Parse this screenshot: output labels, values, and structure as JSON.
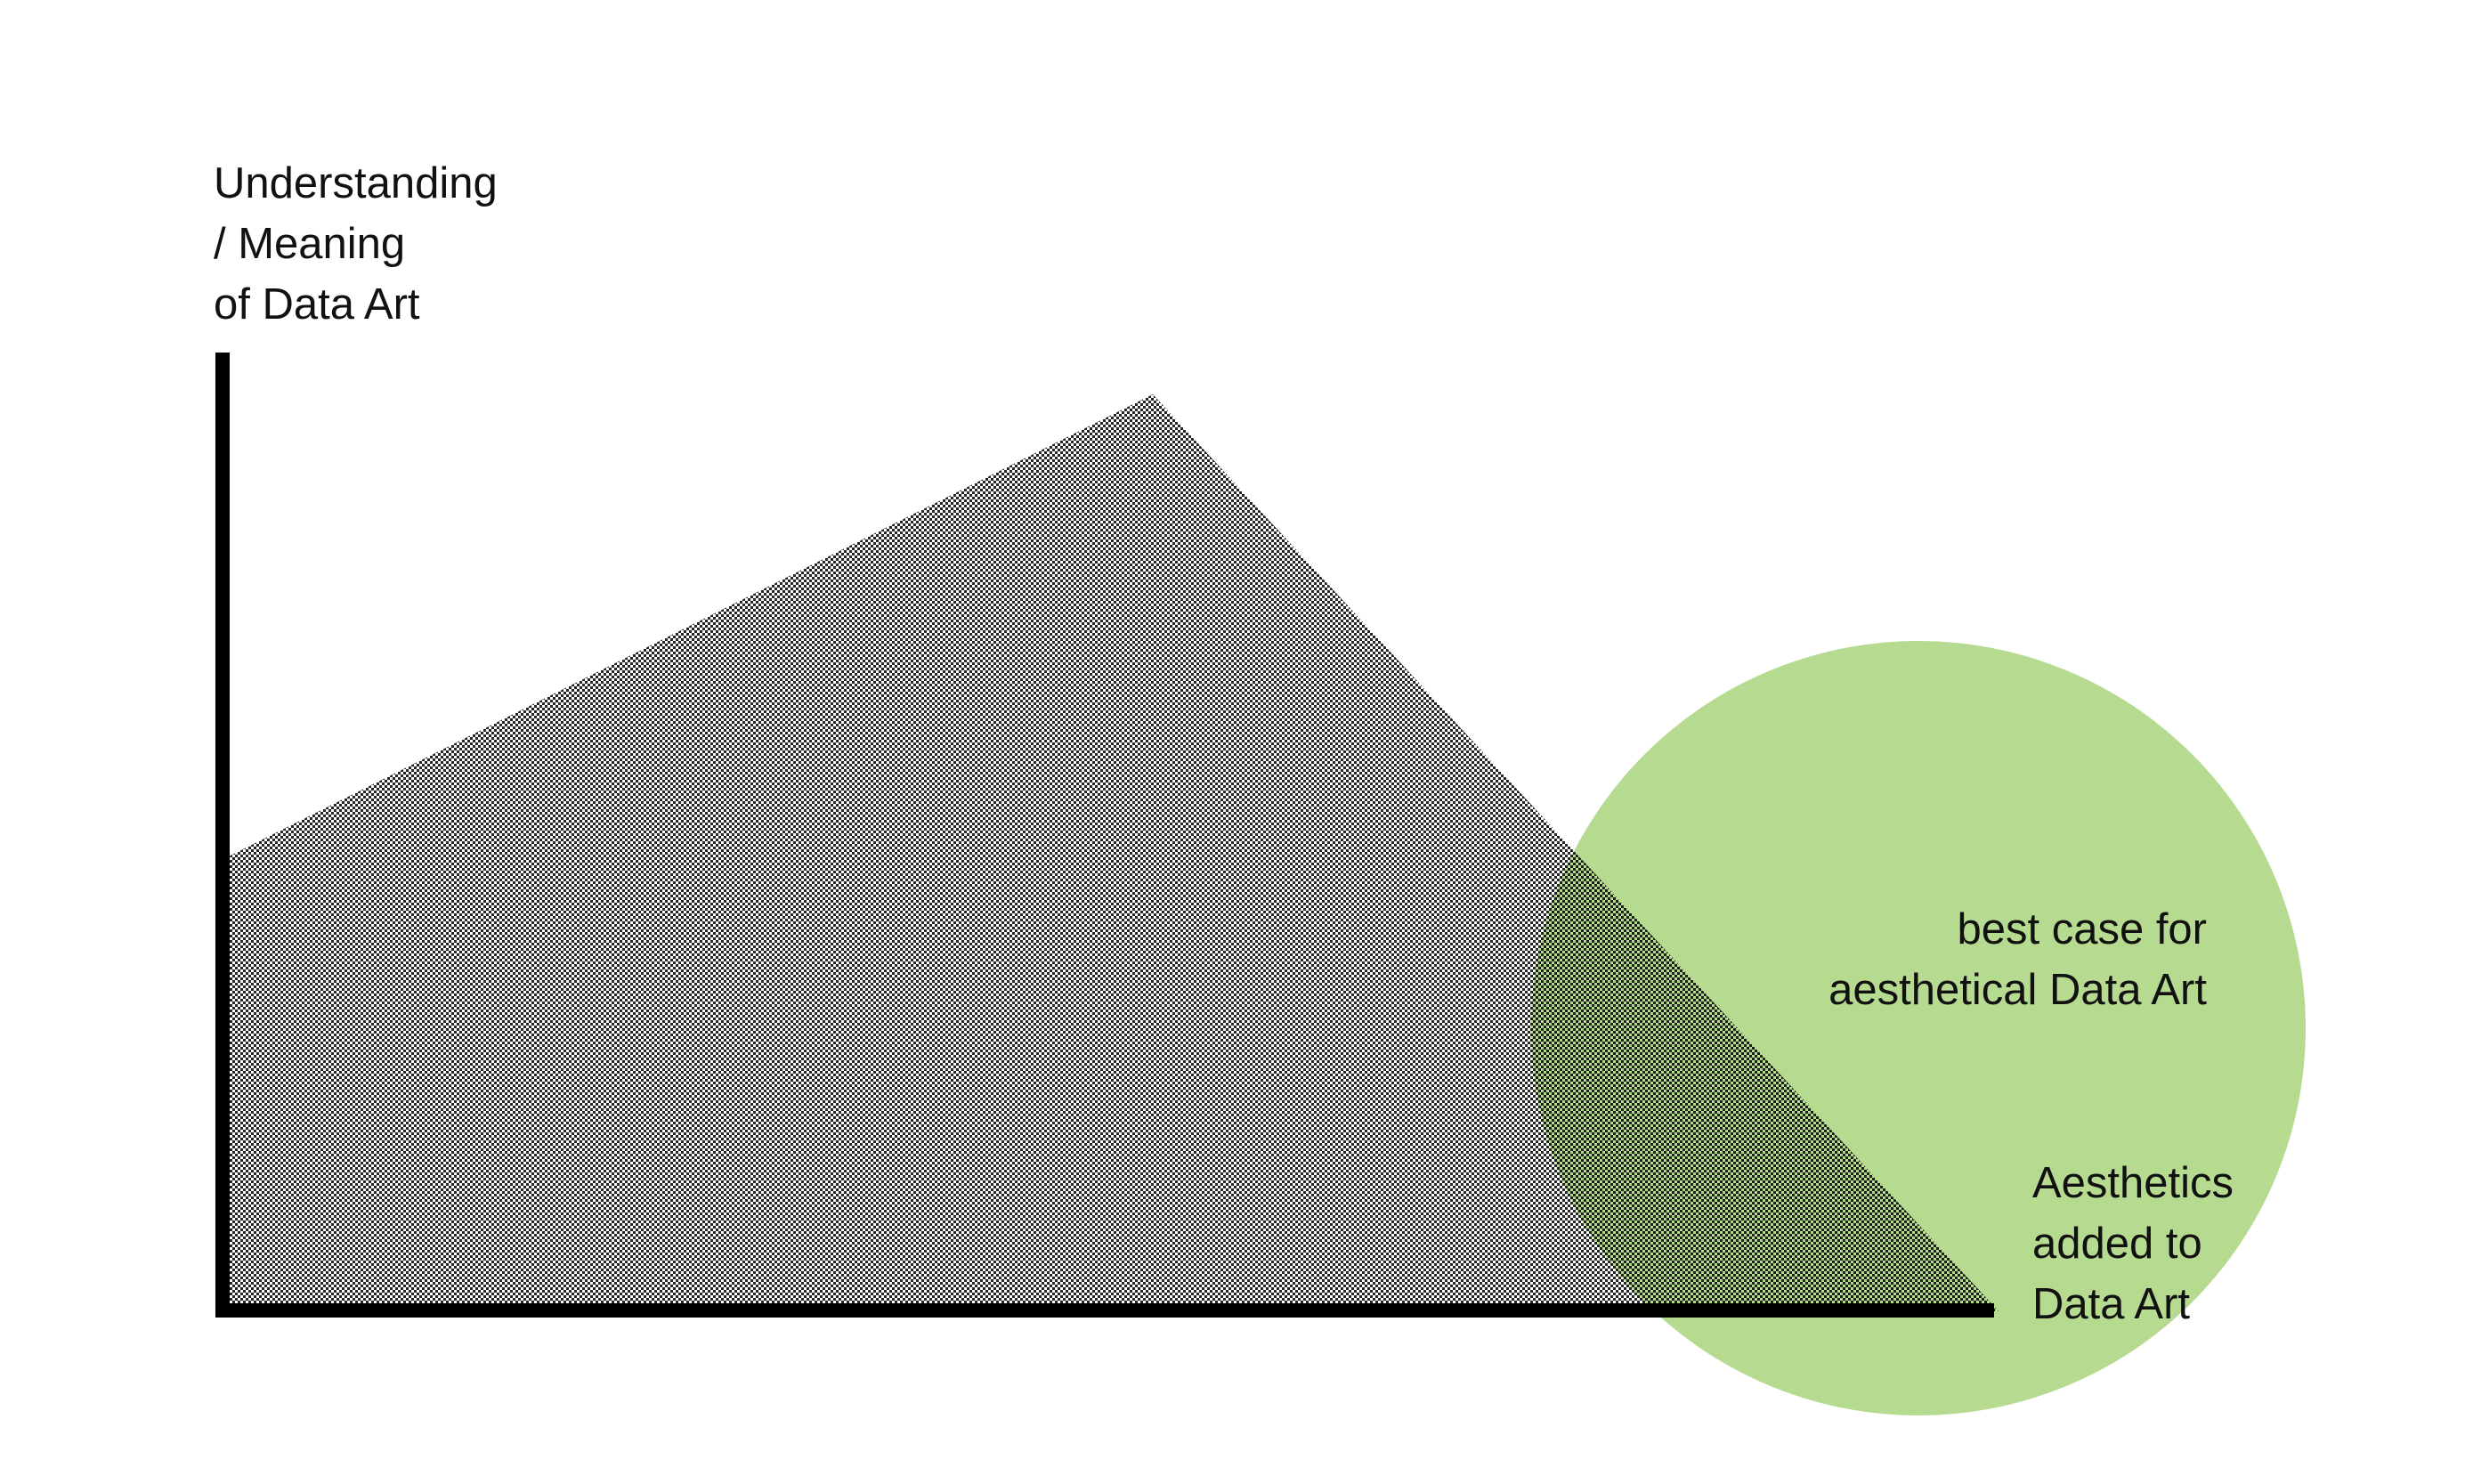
{
  "diagram": {
    "y_axis_label": {
      "line1": "Understanding",
      "line2": "/ Meaning",
      "line3": "of Data Art"
    },
    "x_axis_label": {
      "line1": "Aesthetics",
      "line2": "added to",
      "line3": "Data Art"
    },
    "highlight_label": {
      "line1": "best case for",
      "line2": "aesthetical Data Art"
    },
    "colors": {
      "axis": "#000000",
      "pattern_dot": "#111111",
      "highlight_circle": "#a9d47c",
      "text": "#111111",
      "background": "#ffffff"
    }
  }
}
